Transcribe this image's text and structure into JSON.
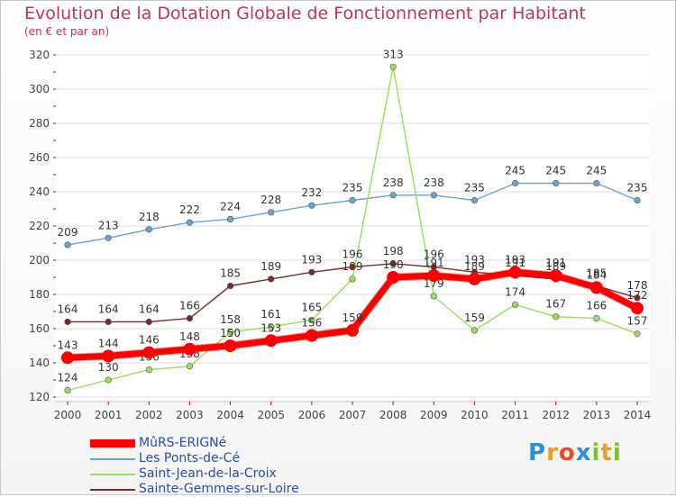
{
  "title": "Evolution de la Dotation Globale de Fonctionnement par Habitant",
  "subtitle": "(en € et par an)",
  "brand": {
    "letters": [
      "P",
      "r",
      "o",
      "x",
      "i",
      "t",
      "i"
    ],
    "colors": [
      "#2f8fd0",
      "#f0a020",
      "#e84a1f",
      "#2f8fd0",
      "#7cc130",
      "#f0a020",
      "#7cc130"
    ]
  },
  "chart_data": {
    "type": "line",
    "title": "Evolution de la Dotation Globale de Fonctionnement par Habitant",
    "xlabel": "",
    "ylabel": "(en € et par an)",
    "categories": [
      "2000",
      "2001",
      "2002",
      "2003",
      "2004",
      "2005",
      "2006",
      "2007",
      "2008",
      "2009",
      "2010",
      "2011",
      "2012",
      "2013",
      "2014"
    ],
    "ylim": [
      120,
      320
    ],
    "yticks": [
      "120",
      "140",
      "160",
      "180",
      "200",
      "220",
      "240",
      "260",
      "280",
      "300",
      "320"
    ],
    "grid": true,
    "legend_position": "bottom-left",
    "series": [
      {
        "name": "MûRS-ERIGNé",
        "color": "#ff0000",
        "emphasis": true,
        "values": [
          143,
          144,
          146,
          148,
          150,
          153,
          156,
          159,
          190,
          191,
          189,
          193,
          191,
          184,
          172
        ],
        "labels": [
          "143",
          "144",
          "146",
          "148",
          "150",
          "153",
          "156",
          "159",
          "190",
          "191",
          "189",
          "193",
          "191",
          "184",
          "172"
        ]
      },
      {
        "name": "Les Ponts-de-Cé",
        "color": "#6aa3d4",
        "values": [
          209,
          213,
          218,
          222,
          224,
          228,
          232,
          235,
          238,
          238,
          235,
          245,
          245,
          245,
          235
        ],
        "labels": [
          "209",
          "213",
          "218",
          "222",
          "224",
          "228",
          "232",
          "235",
          "238",
          "238",
          "235",
          "245",
          "245",
          "245",
          "235"
        ]
      },
      {
        "name": "Saint-Jean-de-la-Croix",
        "color": "#99e05a",
        "values": [
          124,
          130,
          136,
          138,
          158,
          161,
          165,
          189,
          313,
          179,
          159,
          174,
          167,
          166,
          157
        ],
        "labels": [
          "124",
          "130",
          "136",
          "138",
          "158",
          "161",
          "165",
          "189",
          "313",
          "179",
          "159",
          "174",
          "167",
          "166",
          "157"
        ]
      },
      {
        "name": "Sainte-Gemmes-sur-Loire",
        "color": "#7a2a2a",
        "values": [
          164,
          164,
          164,
          166,
          185,
          189,
          193,
          196,
          198,
          196,
          193,
          191,
          189,
          185,
          178
        ],
        "labels": [
          "164",
          "164",
          "164",
          "166",
          "185",
          "189",
          "193",
          "196",
          "198",
          "196",
          "193",
          "191",
          "189",
          "185",
          "178"
        ]
      }
    ]
  }
}
